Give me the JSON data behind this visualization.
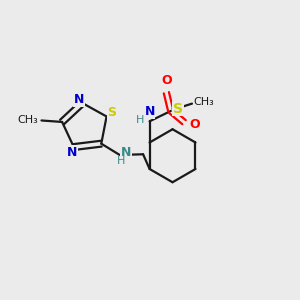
{
  "bg_color": "#ebebeb",
  "bond_color": "#1a1a1a",
  "N_color": "#0000cc",
  "S_color": "#cccc00",
  "O_color": "#ff0000",
  "N_teal_color": "#3a8a8a",
  "figsize": [
    3.0,
    3.0
  ],
  "dpi": 100,
  "xlim": [
    0,
    10
  ],
  "ylim": [
    0,
    10
  ]
}
